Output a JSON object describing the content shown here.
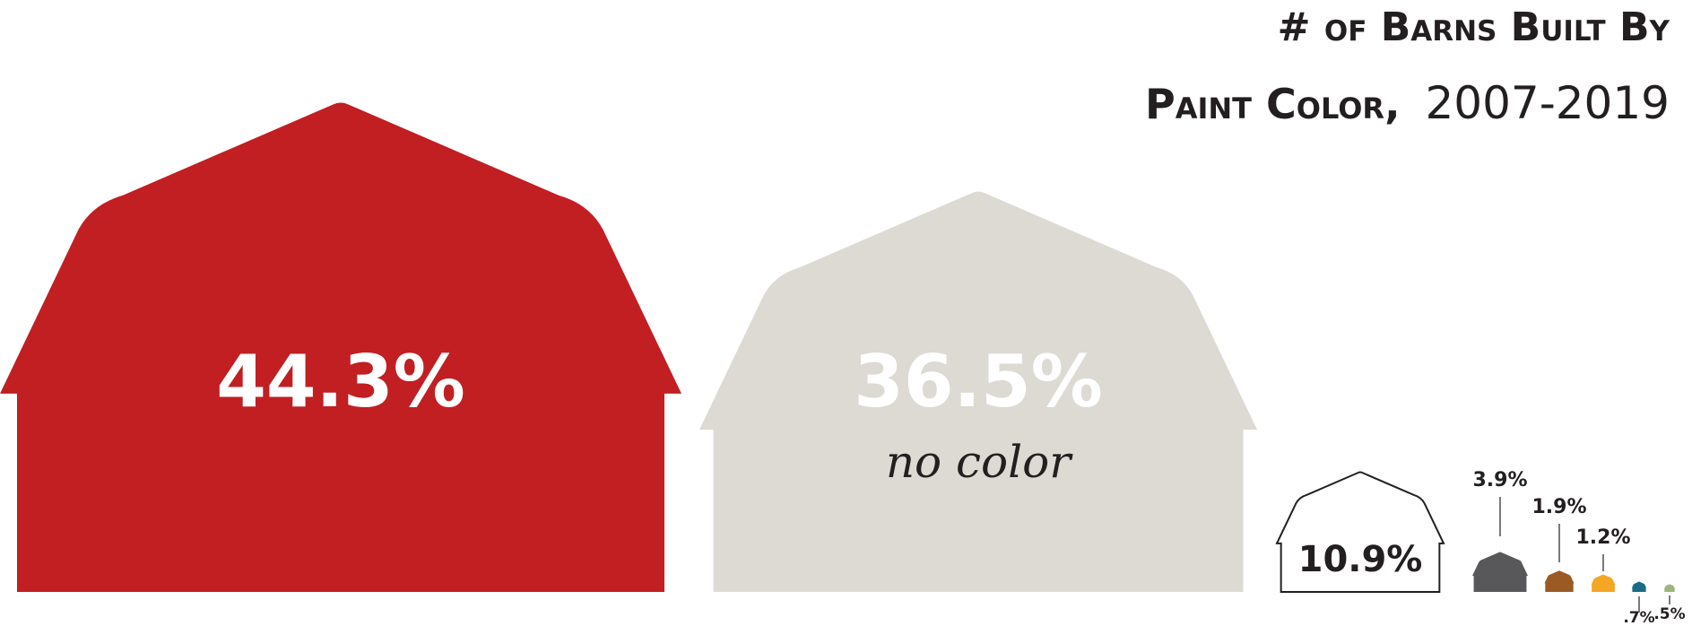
{
  "chart_data": {
    "type": "pictograph",
    "title_line1": "# of Barns Built By",
    "title_line2_bold": "Paint Color,",
    "title_line2_years": "2007-2019",
    "unit": "%",
    "series": [
      {
        "name": "",
        "value": 44.3,
        "label": "44.3%",
        "sublabel": "",
        "color": "#C11F22"
      },
      {
        "name": "no color",
        "value": 36.5,
        "label": "36.5%",
        "sublabel": "no color",
        "color": "#DCDAD3"
      },
      {
        "name": "",
        "value": 10.9,
        "label": "10.9%",
        "sublabel": "",
        "color": "#FFFFFF",
        "outline": "#231F20"
      },
      {
        "name": "",
        "value": 3.9,
        "label": "3.9%",
        "sublabel": "",
        "color": "#58585A"
      },
      {
        "name": "",
        "value": 1.9,
        "label": "1.9%",
        "sublabel": "",
        "color": "#9B5A23"
      },
      {
        "name": "",
        "value": 1.2,
        "label": "1.2%",
        "sublabel": "",
        "color": "#F5A623"
      },
      {
        "name": "",
        "value": 0.7,
        "label": ".7%",
        "sublabel": "",
        "color": "#1A6C86"
      },
      {
        "name": "",
        "value": 0.5,
        "label": ".5%",
        "sublabel": "",
        "color": "#9DB57A"
      }
    ]
  }
}
